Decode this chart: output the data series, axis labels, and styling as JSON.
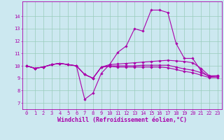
{
  "xlabel": "Windchill (Refroidissement éolien,°C)",
  "ylabel": "",
  "bg_color": "#cce8f0",
  "grid_color": "#99ccbb",
  "line_color": "#aa00aa",
  "x": [
    0,
    1,
    2,
    3,
    4,
    5,
    6,
    7,
    8,
    9,
    10,
    11,
    12,
    13,
    14,
    15,
    16,
    17,
    18,
    19,
    20,
    21,
    22,
    23
  ],
  "line1": [
    10.0,
    9.8,
    9.9,
    10.1,
    10.2,
    10.1,
    10.0,
    7.3,
    7.8,
    9.4,
    10.1,
    11.1,
    11.6,
    13.0,
    12.8,
    14.5,
    14.5,
    14.3,
    11.8,
    10.6,
    10.6,
    9.6,
    9.1,
    9.2
  ],
  "line2": [
    10.0,
    9.8,
    9.9,
    10.1,
    10.2,
    10.1,
    10.0,
    9.3,
    9.0,
    9.9,
    10.1,
    10.15,
    10.2,
    10.25,
    10.3,
    10.35,
    10.4,
    10.45,
    10.4,
    10.35,
    10.25,
    9.8,
    9.2,
    9.2
  ],
  "line3": [
    10.0,
    9.8,
    9.9,
    10.1,
    10.2,
    10.1,
    10.0,
    9.3,
    9.0,
    9.9,
    10.0,
    10.0,
    10.0,
    10.0,
    10.05,
    10.05,
    10.05,
    10.05,
    9.9,
    9.75,
    9.65,
    9.45,
    9.15,
    9.15
  ],
  "line4": [
    10.0,
    9.8,
    9.9,
    10.1,
    10.2,
    10.1,
    10.0,
    9.3,
    9.0,
    9.9,
    9.95,
    9.9,
    9.9,
    9.9,
    9.9,
    9.9,
    9.9,
    9.85,
    9.7,
    9.55,
    9.45,
    9.25,
    9.05,
    9.05
  ],
  "ylim": [
    6.5,
    15.2
  ],
  "xlim": [
    -0.5,
    23.5
  ],
  "yticks": [
    7,
    8,
    9,
    10,
    11,
    12,
    13,
    14
  ],
  "xticks": [
    0,
    1,
    2,
    3,
    4,
    5,
    6,
    7,
    8,
    9,
    10,
    11,
    12,
    13,
    14,
    15,
    16,
    17,
    18,
    19,
    20,
    21,
    22,
    23
  ],
  "tick_fontsize": 5.0,
  "xlabel_fontsize": 6.0,
  "marker": "D",
  "markersize": 1.8,
  "linewidth": 0.8
}
